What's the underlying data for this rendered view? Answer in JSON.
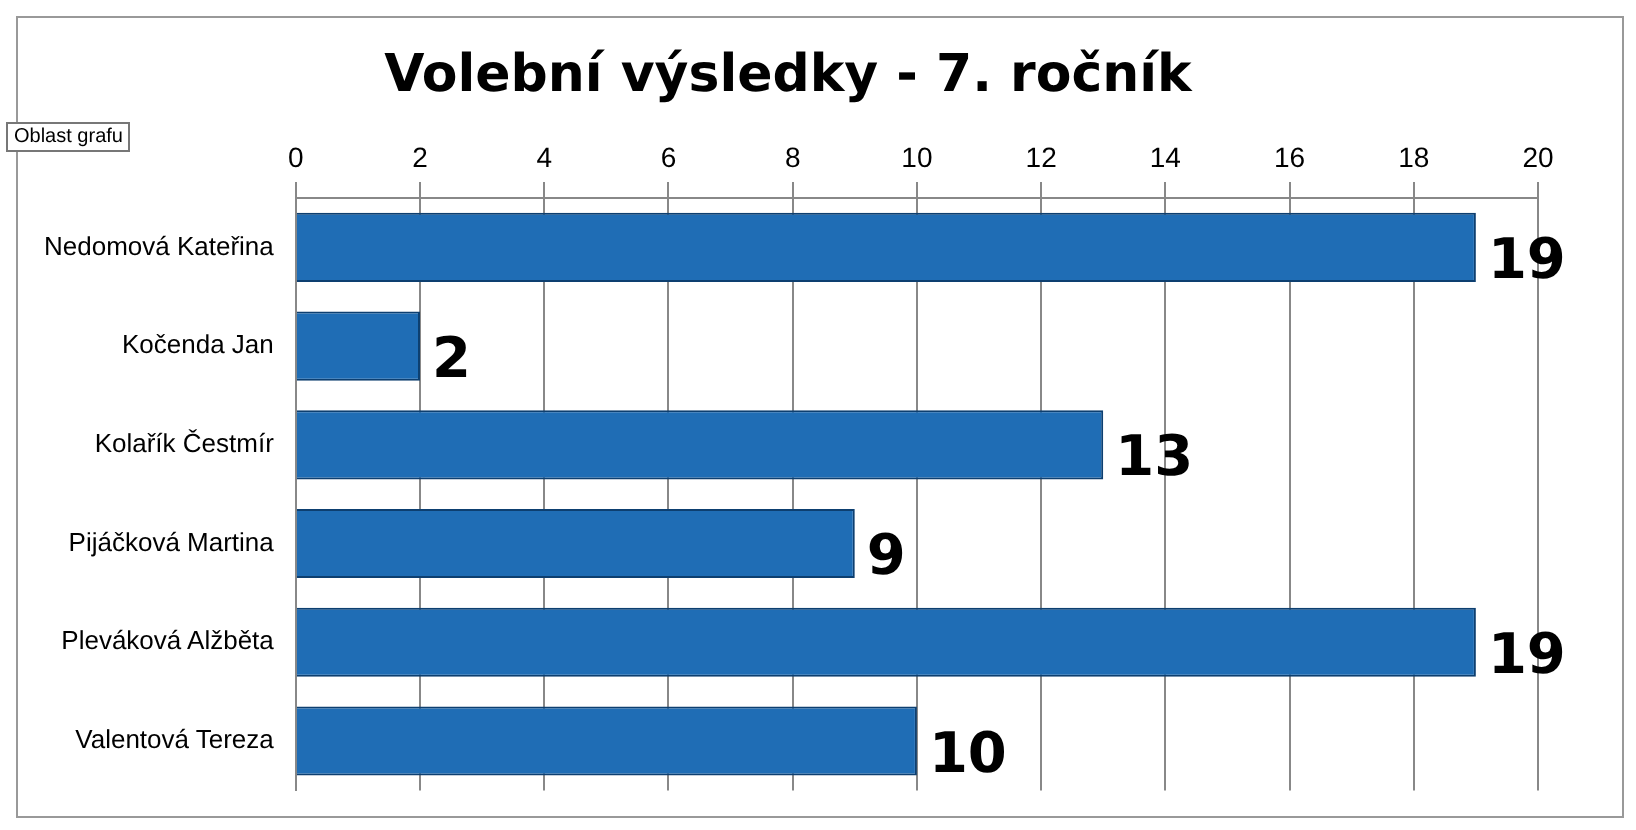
{
  "chart_data": {
    "type": "bar",
    "title": "Volební výsledky - 7. ročník",
    "orientation": "horizontal",
    "categories": [
      "Nedomová Kateřina",
      "Kočenda Jan",
      "Kolařík Čestmír",
      "Pijáčková Martina",
      "Pleváková Alžběta",
      "Valentová Tereza"
    ],
    "values": [
      19,
      2,
      13,
      9,
      19,
      10
    ],
    "color": "#1f6db5",
    "xlim": [
      0,
      20
    ],
    "xticks": [
      0,
      2,
      4,
      6,
      8,
      10,
      12,
      14,
      16,
      18,
      20
    ],
    "grid": "x",
    "legend": false,
    "data_labels": true,
    "annotations": [
      "Oblast grafu"
    ]
  }
}
